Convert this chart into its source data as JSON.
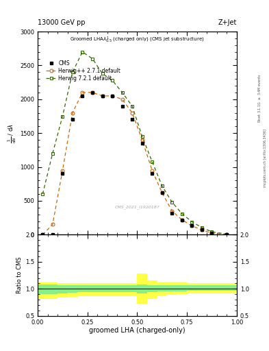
{
  "title_top": "13000 GeV pp",
  "title_right": "Z+Jet",
  "plot_title": "Groomed LHA$\\lambda^{1}_{0.5}$ (charged only) (CMS jet substructure)",
  "xlabel": "groomed LHA (charged-only)",
  "ylabel_main": "$\\frac{1}{\\mathrm{d}N} \\, / \\, \\mathrm{d}\\lambda$",
  "ylabel_ratio": "Ratio to CMS",
  "watermark": "CMS_2021_I1920187",
  "right_label1": "Rivet 3.1.10, $\\geq$ 3.4M events",
  "right_label2": "mcplots.cern.ch [arXiv:1306.3436]",
  "x_cms": [
    0.025,
    0.075,
    0.125,
    0.175,
    0.225,
    0.275,
    0.325,
    0.375,
    0.425,
    0.475,
    0.525,
    0.575,
    0.625,
    0.675,
    0.725,
    0.775,
    0.825,
    0.875,
    0.95
  ],
  "y_cms": [
    0,
    0,
    900,
    1700,
    2050,
    2100,
    2050,
    2050,
    1900,
    1700,
    1350,
    900,
    620,
    320,
    220,
    130,
    70,
    25,
    5
  ],
  "x_herwig1": [
    0.025,
    0.075,
    0.125,
    0.175,
    0.225,
    0.275,
    0.325,
    0.375,
    0.425,
    0.475,
    0.525,
    0.575,
    0.625,
    0.675,
    0.725,
    0.775,
    0.825,
    0.875,
    0.95
  ],
  "y_herwig1": [
    0,
    150,
    950,
    1800,
    2100,
    2100,
    2050,
    2050,
    2000,
    1800,
    1400,
    950,
    620,
    350,
    220,
    130,
    70,
    22,
    5
  ],
  "x_herwig2": [
    0.025,
    0.075,
    0.125,
    0.175,
    0.225,
    0.275,
    0.325,
    0.375,
    0.425,
    0.475,
    0.525,
    0.575,
    0.625,
    0.675,
    0.725,
    0.775,
    0.825,
    0.875,
    0.95
  ],
  "y_herwig2": [
    600,
    1200,
    1750,
    2400,
    2700,
    2600,
    2380,
    2280,
    2100,
    1900,
    1450,
    1080,
    720,
    480,
    310,
    190,
    105,
    42,
    8
  ],
  "color_herwig1": "#cc6600",
  "color_herwig2": "#336600",
  "color_cms": "#000000",
  "ratio_x": [
    0.0,
    0.05,
    0.1,
    0.15,
    0.2,
    0.25,
    0.3,
    0.35,
    0.4,
    0.45,
    0.5,
    0.55,
    0.6,
    0.65,
    0.7,
    0.75,
    0.8,
    0.85,
    0.9,
    0.95,
    1.0
  ],
  "ratio_green_lo": [
    0.9,
    0.9,
    0.92,
    0.93,
    0.94,
    0.94,
    0.94,
    0.94,
    0.94,
    0.94,
    0.91,
    0.94,
    0.95,
    0.95,
    0.95,
    0.96,
    0.96,
    0.96,
    0.96,
    0.96,
    0.96
  ],
  "ratio_green_hi": [
    1.08,
    1.08,
    1.07,
    1.07,
    1.07,
    1.07,
    1.07,
    1.07,
    1.07,
    1.07,
    1.08,
    1.07,
    1.07,
    1.07,
    1.07,
    1.07,
    1.07,
    1.07,
    1.07,
    1.07,
    1.07
  ],
  "ratio_yellow_lo": [
    0.82,
    0.82,
    0.84,
    0.85,
    0.86,
    0.87,
    0.87,
    0.87,
    0.87,
    0.87,
    0.72,
    0.82,
    0.88,
    0.89,
    0.9,
    0.91,
    0.91,
    0.91,
    0.91,
    0.92,
    0.92
  ],
  "ratio_yellow_hi": [
    1.12,
    1.12,
    1.11,
    1.11,
    1.11,
    1.11,
    1.11,
    1.11,
    1.11,
    1.11,
    1.28,
    1.16,
    1.12,
    1.12,
    1.12,
    1.11,
    1.11,
    1.11,
    1.11,
    1.1,
    1.1
  ],
  "ylim_main": [
    0,
    3000
  ],
  "yticks_main": [
    0,
    500,
    1000,
    1500,
    2000,
    2500,
    3000
  ],
  "ylim_ratio": [
    0.5,
    2.0
  ],
  "xlim": [
    0,
    1
  ]
}
